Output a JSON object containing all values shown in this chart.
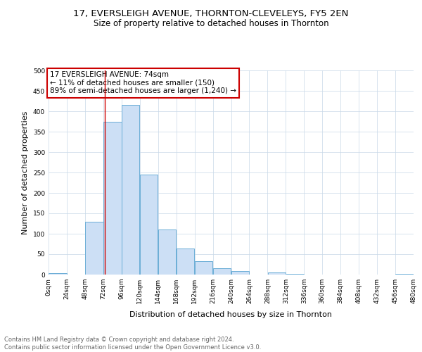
{
  "title": "17, EVERSLEIGH AVENUE, THORNTON-CLEVELEYS, FY5 2EN",
  "subtitle": "Size of property relative to detached houses in Thornton",
  "xlabel": "Distribution of detached houses by size in Thornton",
  "ylabel": "Number of detached properties",
  "bin_edges": [
    0,
    24,
    48,
    72,
    96,
    120,
    144,
    168,
    192,
    216,
    240,
    264,
    288,
    312,
    336,
    360,
    384,
    408,
    432,
    456,
    480
  ],
  "bin_values": [
    3,
    0,
    130,
    375,
    415,
    245,
    110,
    63,
    32,
    15,
    8,
    0,
    6,
    2,
    0,
    0,
    0,
    0,
    0,
    2
  ],
  "bar_color": "#ccdff5",
  "bar_edge_color": "#6baed6",
  "vline_color": "#cc0000",
  "vline_x": 74,
  "annotation_text": "17 EVERSLEIGH AVENUE: 74sqm\n← 11% of detached houses are smaller (150)\n89% of semi-detached houses are larger (1,240) →",
  "annotation_box_color": "white",
  "annotation_box_edge": "#cc0000",
  "ylim": [
    0,
    500
  ],
  "xlim": [
    0,
    480
  ],
  "xtick_positions": [
    0,
    24,
    48,
    72,
    96,
    120,
    144,
    168,
    192,
    216,
    240,
    264,
    288,
    312,
    336,
    360,
    384,
    408,
    432,
    456,
    480
  ],
  "xtick_labels": [
    "0sqm",
    "24sqm",
    "48sqm",
    "72sqm",
    "96sqm",
    "120sqm",
    "144sqm",
    "168sqm",
    "192sqm",
    "216sqm",
    "240sqm",
    "264sqm",
    "288sqm",
    "312sqm",
    "336sqm",
    "360sqm",
    "384sqm",
    "408sqm",
    "432sqm",
    "456sqm",
    "480sqm"
  ],
  "ytick_positions": [
    0,
    50,
    100,
    150,
    200,
    250,
    300,
    350,
    400,
    450,
    500
  ],
  "footer_text": "Contains HM Land Registry data © Crown copyright and database right 2024.\nContains public sector information licensed under the Open Government Licence v3.0.",
  "background_color": "#ffffff",
  "grid_color": "#c8d8e8",
  "title_fontsize": 9.5,
  "subtitle_fontsize": 8.5,
  "label_fontsize": 8,
  "tick_fontsize": 6.5,
  "annotation_fontsize": 7.5,
  "footer_fontsize": 6
}
